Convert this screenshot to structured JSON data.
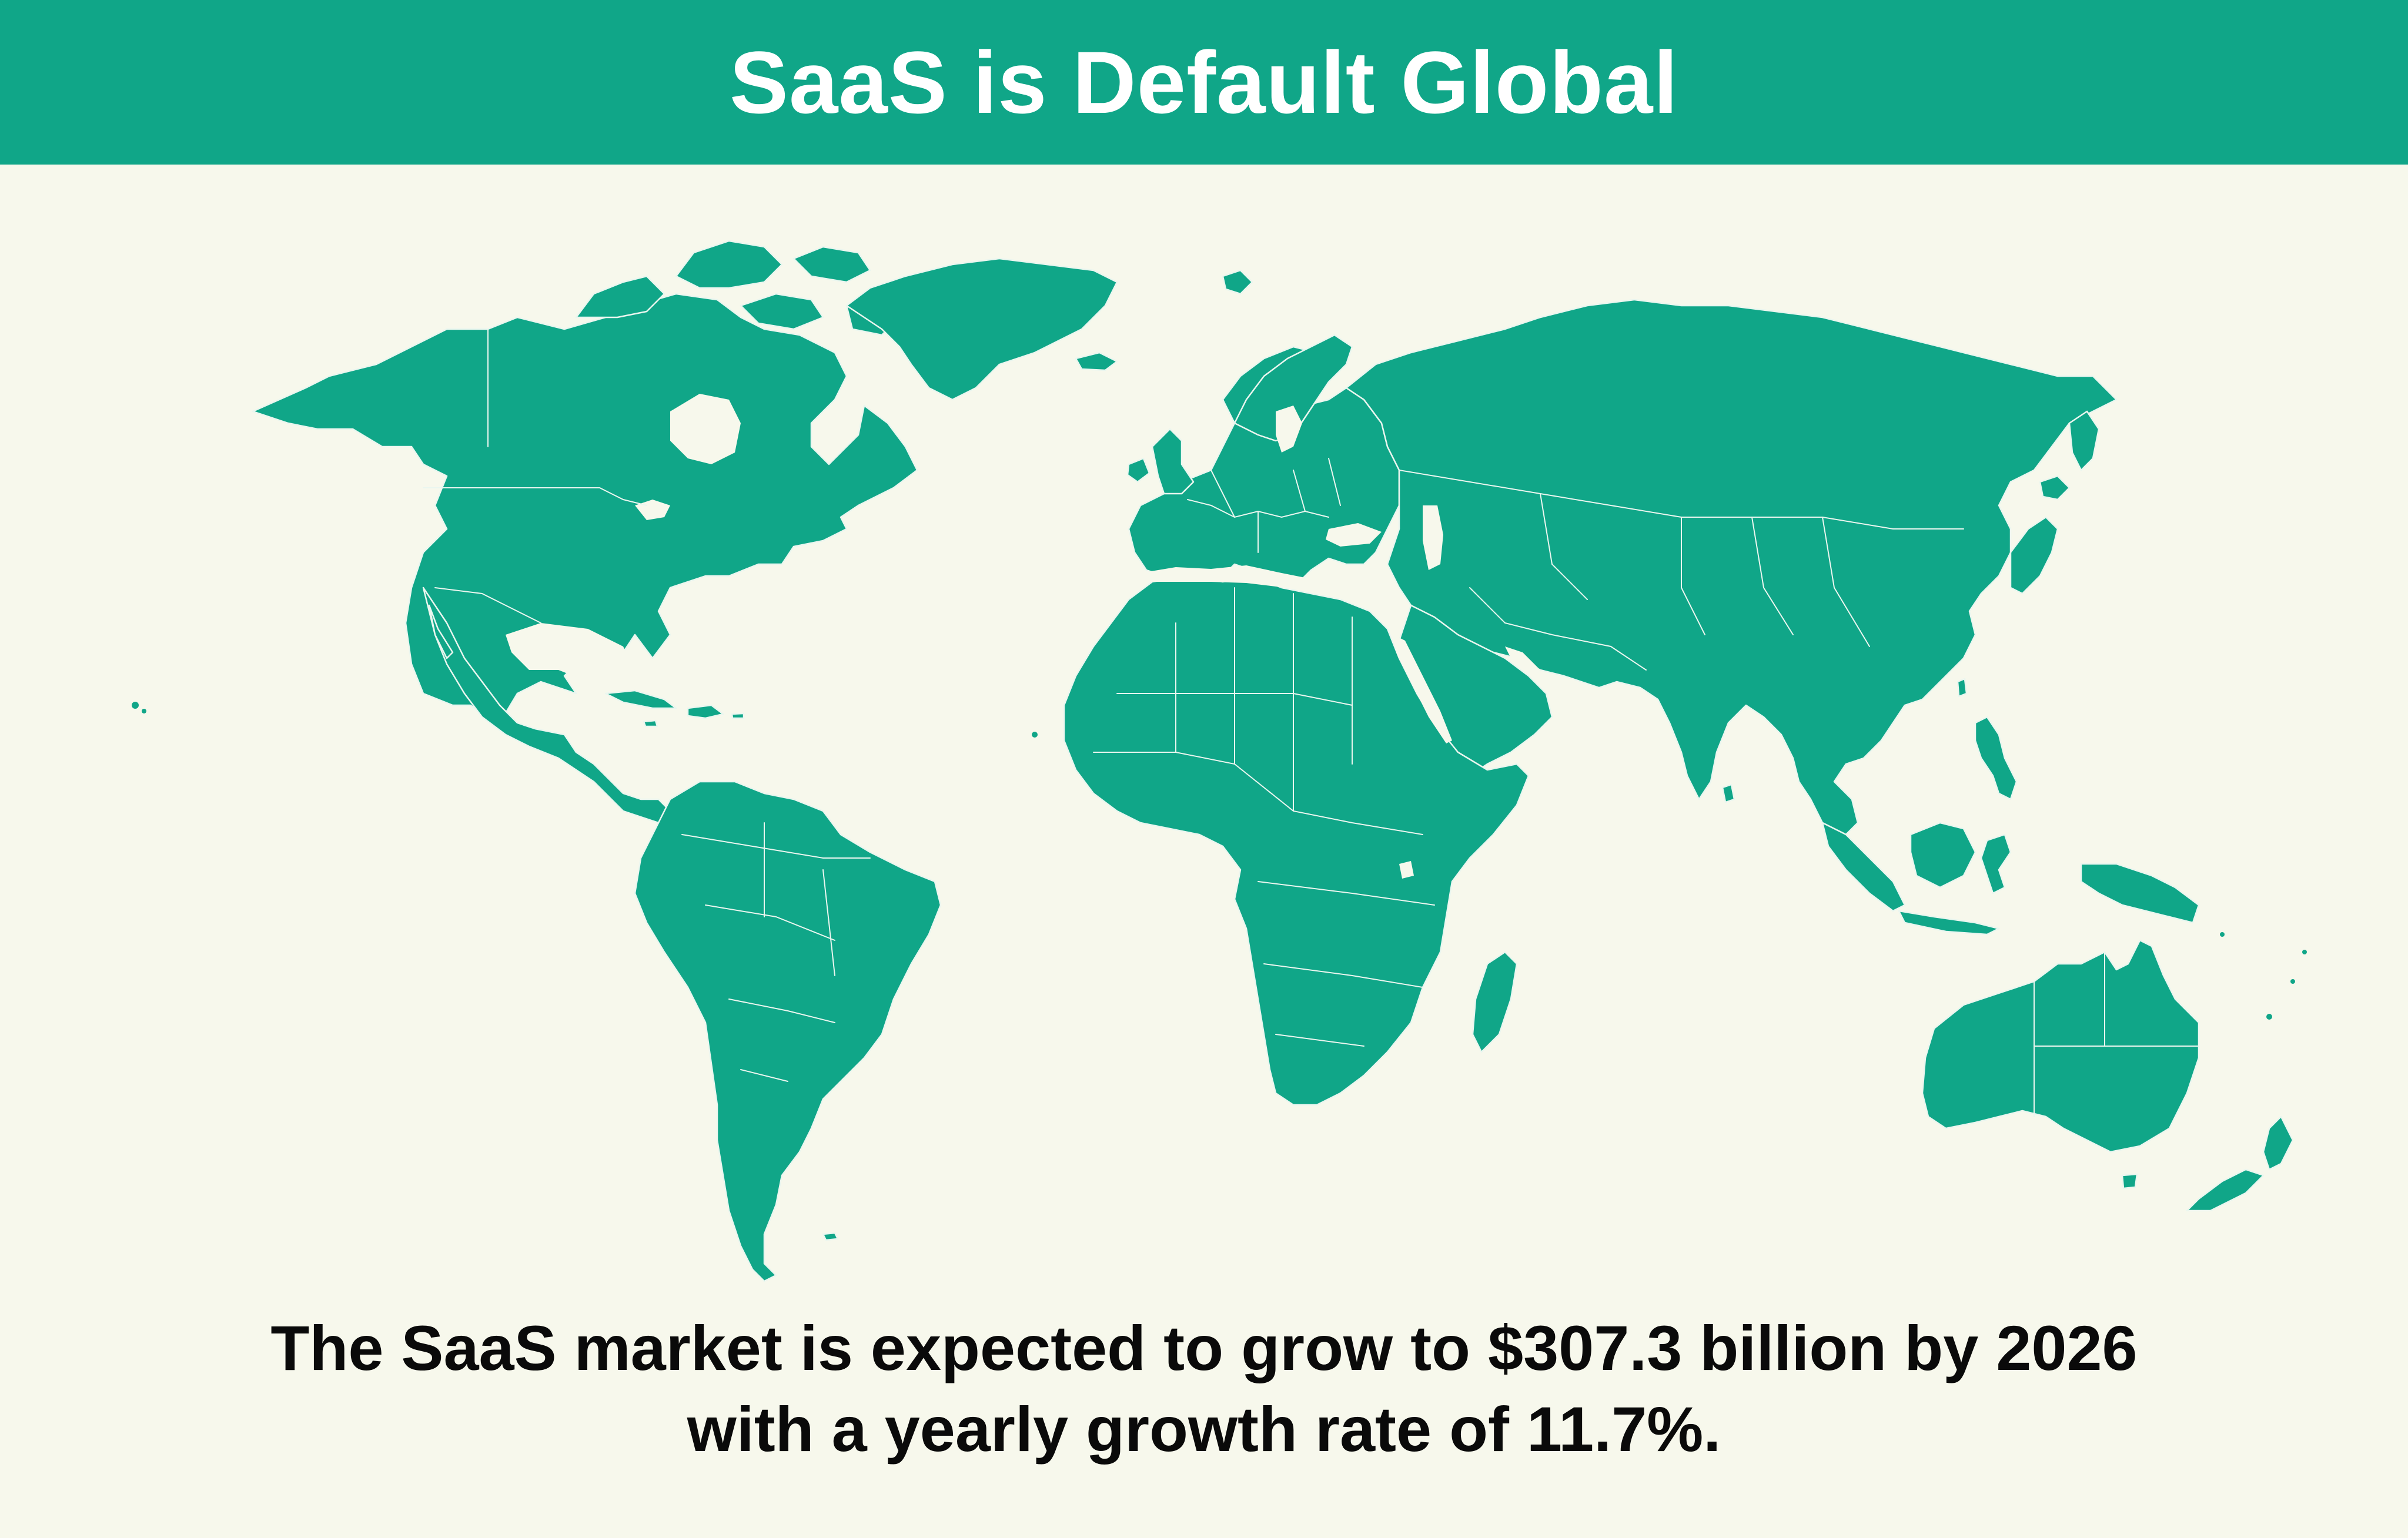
{
  "header": {
    "title": "SaaS is Default Global"
  },
  "caption": {
    "line1": "The SaaS market is expected to grow to $307.3 billion by 2026",
    "line2": "with a yearly growth rate of 11.7%."
  },
  "map": {
    "landmasses": [
      "north-america",
      "greenland",
      "central-america",
      "caribbean",
      "south-america",
      "europe",
      "africa",
      "madagascar",
      "asia",
      "arabian-peninsula",
      "japan",
      "southeast-asia",
      "indonesia",
      "philippines",
      "new-guinea",
      "australia",
      "new-zealand",
      "british-isles",
      "iceland",
      "svalbard"
    ]
  },
  "colors": {
    "header_bg": "#10a688",
    "land": "#10a688",
    "border": "#eaf6ef",
    "background": "#f7f8ec",
    "text": "#0a0a0a"
  }
}
